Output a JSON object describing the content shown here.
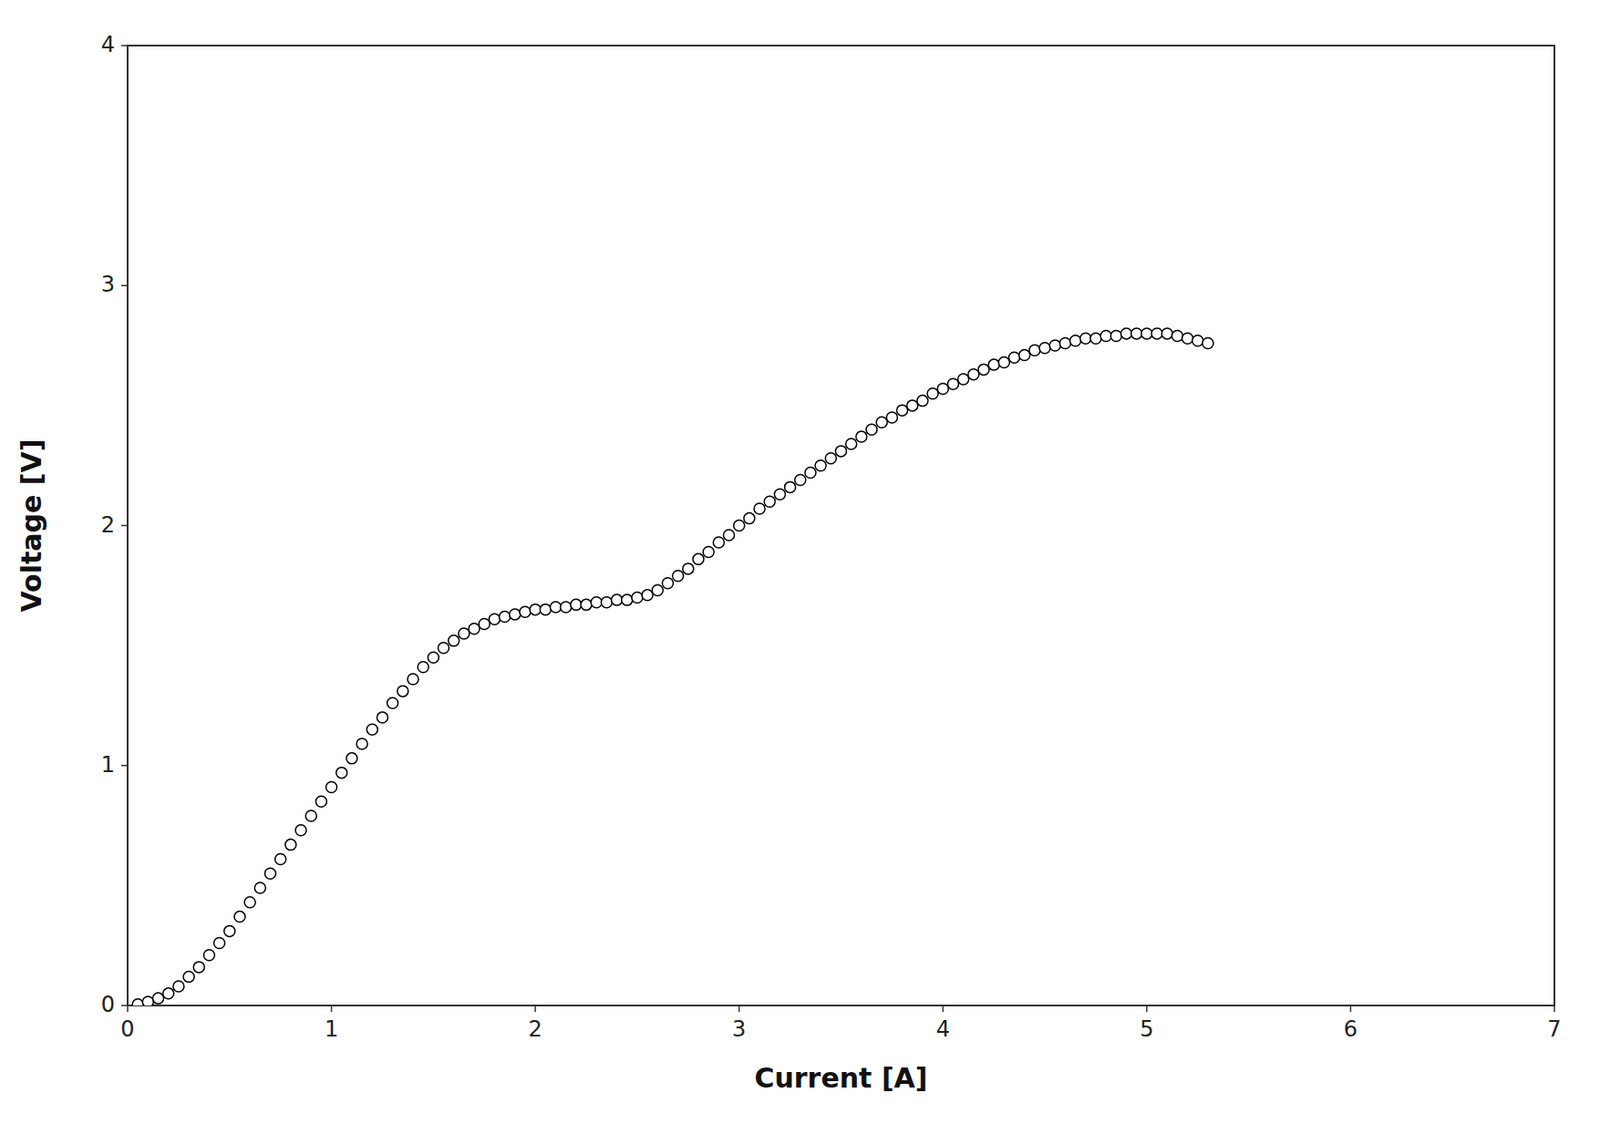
{
  "chart_data": {
    "type": "scatter",
    "xlabel": "Current [A]",
    "ylabel": "Voltage [V]",
    "xlim": [
      0,
      7
    ],
    "ylim": [
      0,
      4
    ],
    "xticks": [
      0,
      1,
      2,
      3,
      4,
      5,
      6,
      7
    ],
    "yticks": [
      0,
      1,
      2,
      3,
      4
    ],
    "marker": "circle",
    "color": "#000000",
    "grid": false,
    "x": [
      0.05,
      0.1,
      0.15,
      0.2,
      0.25,
      0.3,
      0.35,
      0.4,
      0.45,
      0.5,
      0.55,
      0.6,
      0.65,
      0.7,
      0.75,
      0.8,
      0.85,
      0.9,
      0.95,
      1.0,
      1.05,
      1.1,
      1.15,
      1.2,
      1.25,
      1.3,
      1.35,
      1.4,
      1.45,
      1.5,
      1.55,
      1.6,
      1.65,
      1.7,
      1.75,
      1.8,
      1.85,
      1.9,
      1.95,
      2.0,
      2.05,
      2.1,
      2.15,
      2.2,
      2.25,
      2.3,
      2.35,
      2.4,
      2.45,
      2.5,
      2.55,
      2.6,
      2.65,
      2.7,
      2.75,
      2.8,
      2.85,
      2.9,
      2.95,
      3.0,
      3.05,
      3.1,
      3.15,
      3.2,
      3.25,
      3.3,
      3.35,
      3.4,
      3.45,
      3.5,
      3.55,
      3.6,
      3.65,
      3.7,
      3.75,
      3.8,
      3.85,
      3.9,
      3.95,
      4.0,
      4.05,
      4.1,
      4.15,
      4.2,
      4.25,
      4.3,
      4.35,
      4.4,
      4.45,
      4.5,
      4.55,
      4.6,
      4.65,
      4.7,
      4.75,
      4.8,
      4.85,
      4.9,
      4.95,
      5.0,
      5.05,
      5.1,
      5.15,
      5.2,
      5.25,
      5.3
    ],
    "values": [
      0.005,
      0.015,
      0.03,
      0.05,
      0.08,
      0.12,
      0.16,
      0.21,
      0.26,
      0.31,
      0.37,
      0.43,
      0.49,
      0.55,
      0.61,
      0.67,
      0.73,
      0.79,
      0.85,
      0.91,
      0.97,
      1.03,
      1.09,
      1.15,
      1.2,
      1.26,
      1.31,
      1.36,
      1.41,
      1.45,
      1.49,
      1.52,
      1.55,
      1.57,
      1.59,
      1.61,
      1.62,
      1.63,
      1.64,
      1.65,
      1.65,
      1.66,
      1.66,
      1.67,
      1.67,
      1.68,
      1.68,
      1.69,
      1.69,
      1.7,
      1.71,
      1.73,
      1.76,
      1.79,
      1.82,
      1.86,
      1.89,
      1.93,
      1.96,
      2.0,
      2.03,
      2.07,
      2.1,
      2.13,
      2.16,
      2.19,
      2.22,
      2.25,
      2.28,
      2.31,
      2.34,
      2.37,
      2.4,
      2.43,
      2.45,
      2.48,
      2.5,
      2.52,
      2.55,
      2.57,
      2.59,
      2.61,
      2.63,
      2.65,
      2.67,
      2.68,
      2.7,
      2.71,
      2.73,
      2.74,
      2.75,
      2.76,
      2.77,
      2.78,
      2.78,
      2.79,
      2.79,
      2.8,
      2.8,
      2.8,
      2.8,
      2.8,
      2.79,
      2.78,
      2.77,
      2.76
    ]
  }
}
